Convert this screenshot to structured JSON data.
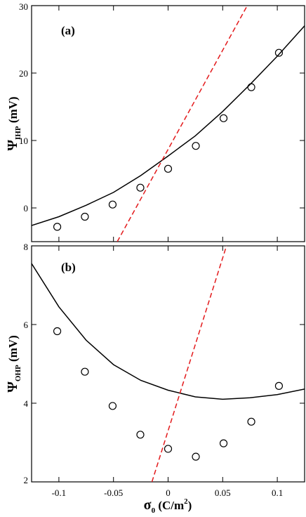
{
  "chart_data": [
    {
      "type": "scatter",
      "panel_label": "(a)",
      "ylabel": {
        "symbol": "Ψ",
        "subscript": "IHP",
        "unit": " (mV)"
      },
      "xlabel": "",
      "xlim": [
        -0.125,
        0.125
      ],
      "ylim": [
        -5,
        30
      ],
      "xticks": [
        -0.1,
        -0.05,
        0,
        0.05,
        0.1
      ],
      "yticks": [
        0,
        10,
        20,
        30
      ],
      "ytick_labels": [
        "0",
        "10",
        "20",
        "30"
      ],
      "show_x_tick_labels": false,
      "series": [
        {
          "kind": "markers",
          "style": "open-circle",
          "color": "#000000",
          "x": [
            -0.1015,
            -0.0762,
            -0.0508,
            -0.0254,
            0,
            0.0254,
            0.0508,
            0.0762,
            0.1015
          ],
          "y": [
            -2.8,
            -1.3,
            0.5,
            3.0,
            5.8,
            9.2,
            13.3,
            17.9,
            23.0
          ]
        },
        {
          "kind": "line",
          "style": "solid",
          "color": "#000000",
          "x": [
            -0.125,
            -0.1,
            -0.075,
            -0.05,
            -0.025,
            0,
            0.025,
            0.05,
            0.075,
            0.1,
            0.125
          ],
          "y": [
            -2.6,
            -1.3,
            0.4,
            2.3,
            4.8,
            7.7,
            10.7,
            14.3,
            18.3,
            22.5,
            27.0
          ]
        },
        {
          "kind": "line",
          "style": "dashed",
          "color": "#e31a1c",
          "x": [
            -0.0465,
            0.0725
          ],
          "y": [
            -5,
            30
          ]
        }
      ]
    },
    {
      "type": "scatter",
      "panel_label": "(b)",
      "ylabel": {
        "symbol": "Ψ",
        "subscript": "OHP",
        "unit": " (mV)"
      },
      "xlabel": {
        "symbol": "σ",
        "subscript": "0",
        "unit": " (C/m",
        "sup": "2",
        "close": ")"
      },
      "xlim": [
        -0.125,
        0.125
      ],
      "ylim": [
        2,
        8
      ],
      "xticks": [
        -0.1,
        -0.05,
        0,
        0.05,
        0.1
      ],
      "xtick_labels": [
        "-0.1",
        "-0.05",
        "0",
        "0.05",
        "0.1"
      ],
      "yticks": [
        2,
        4,
        6,
        8
      ],
      "ytick_labels": [
        "2",
        "4",
        "6",
        "8"
      ],
      "show_x_tick_labels": true,
      "series": [
        {
          "kind": "markers",
          "style": "open-circle",
          "color": "#000000",
          "x": [
            -0.1015,
            -0.0762,
            -0.0508,
            -0.0254,
            0,
            0.0254,
            0.0508,
            0.0762,
            0.1015
          ],
          "y": [
            5.83,
            4.8,
            3.93,
            3.2,
            2.84,
            2.64,
            2.98,
            3.53,
            4.44
          ]
        },
        {
          "kind": "line",
          "style": "solid",
          "color": "#000000",
          "x": [
            -0.125,
            -0.1,
            -0.075,
            -0.05,
            -0.025,
            0,
            0.025,
            0.05,
            0.075,
            0.1,
            0.125
          ],
          "y": [
            7.55,
            6.45,
            5.6,
            4.98,
            4.58,
            4.33,
            4.16,
            4.1,
            4.14,
            4.22,
            4.36
          ]
        },
        {
          "kind": "line",
          "style": "dashed",
          "color": "#e31a1c",
          "x": [
            -0.0148,
            0.0535
          ],
          "y": [
            2,
            8
          ]
        }
      ]
    }
  ]
}
